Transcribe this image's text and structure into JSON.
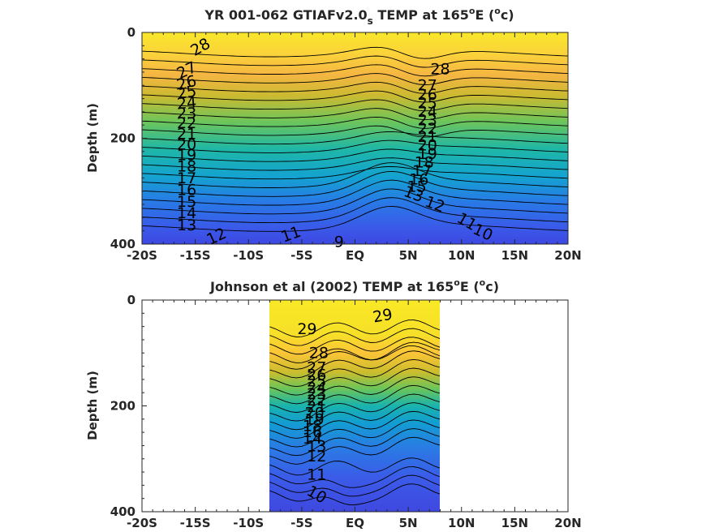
{
  "chart_data": [
    {
      "type": "heatmap",
      "title_main": "YR 001-062 GTIAFv2.0",
      "title_sub": "s",
      "title_rest": " TEMP at 165",
      "title_deg": "o",
      "title_end": "E (",
      "title_unit_sup": "o",
      "title_unit_end": "c)",
      "ylabel": "Depth (m)",
      "xlim": [
        -20,
        20
      ],
      "ylim": [
        400,
        0
      ],
      "x_ticks": [
        -20,
        -15,
        -10,
        -5,
        0,
        5,
        10,
        15,
        20
      ],
      "x_tick_labels": [
        "-20S",
        "-15S",
        "-10S",
        "-5S",
        "EQ",
        "5N",
        "10N",
        "15N",
        "20N"
      ],
      "y_ticks": [
        0,
        200,
        400
      ],
      "y_tick_labels": [
        "0",
        "200",
        "400"
      ],
      "data_extent": [
        -20,
        20
      ],
      "contour_levels": [
        9,
        10,
        11,
        12,
        13,
        14,
        15,
        16,
        17,
        18,
        19,
        20,
        21,
        22,
        23,
        24,
        25,
        26,
        27,
        28,
        29
      ],
      "contour_labels": [
        {
          "text": "28",
          "lat": -14.5,
          "depth": 28,
          "rot": -30
        },
        {
          "text": "27",
          "lat": -15.8,
          "depth": 72,
          "rot": -25
        },
        {
          "text": "26",
          "lat": -15.8,
          "depth": 96,
          "rot": -15
        },
        {
          "text": "25",
          "lat": -15.8,
          "depth": 114,
          "rot": -10
        },
        {
          "text": "24",
          "lat": -15.8,
          "depth": 134,
          "rot": -5
        },
        {
          "text": "23",
          "lat": -15.8,
          "depth": 153,
          "rot": 0
        },
        {
          "text": "22",
          "lat": -15.8,
          "depth": 172,
          "rot": 0
        },
        {
          "text": "21",
          "lat": -15.8,
          "depth": 192,
          "rot": 0
        },
        {
          "text": "20",
          "lat": -15.8,
          "depth": 212,
          "rot": 0
        },
        {
          "text": "19",
          "lat": -15.8,
          "depth": 232,
          "rot": 0
        },
        {
          "text": "18",
          "lat": -15.8,
          "depth": 254,
          "rot": 0
        },
        {
          "text": "17",
          "lat": -15.8,
          "depth": 276,
          "rot": 0
        },
        {
          "text": "16",
          "lat": -15.8,
          "depth": 298,
          "rot": 0
        },
        {
          "text": "15",
          "lat": -15.8,
          "depth": 320,
          "rot": 0
        },
        {
          "text": "14",
          "lat": -15.8,
          "depth": 342,
          "rot": 0
        },
        {
          "text": "13",
          "lat": -15.8,
          "depth": 365,
          "rot": 0
        },
        {
          "text": "12",
          "lat": -13.0,
          "depth": 386,
          "rot": -25
        },
        {
          "text": "11",
          "lat": -6.0,
          "depth": 382,
          "rot": -20
        },
        {
          "text": "9",
          "lat": -1.5,
          "depth": 396,
          "rot": 0
        },
        {
          "text": "28",
          "lat": 8.0,
          "depth": 70,
          "rot": 0
        },
        {
          "text": "27",
          "lat": 6.8,
          "depth": 100,
          "rot": 0
        },
        {
          "text": "26",
          "lat": 6.8,
          "depth": 118,
          "rot": 0
        },
        {
          "text": "25",
          "lat": 6.8,
          "depth": 134,
          "rot": 0
        },
        {
          "text": "24",
          "lat": 6.8,
          "depth": 150,
          "rot": 0
        },
        {
          "text": "23",
          "lat": 6.8,
          "depth": 166,
          "rot": 0
        },
        {
          "text": "22",
          "lat": 6.8,
          "depth": 182,
          "rot": 0
        },
        {
          "text": "21",
          "lat": 6.8,
          "depth": 198,
          "rot": 0
        },
        {
          "text": "20",
          "lat": 6.8,
          "depth": 214,
          "rot": 0
        },
        {
          "text": "19",
          "lat": 6.8,
          "depth": 230,
          "rot": 0
        },
        {
          "text": "18",
          "lat": 6.5,
          "depth": 246,
          "rot": 0
        },
        {
          "text": "17",
          "lat": 6.3,
          "depth": 262,
          "rot": 0
        },
        {
          "text": "16",
          "lat": 6.0,
          "depth": 278,
          "rot": 0
        },
        {
          "text": "15",
          "lat": 5.8,
          "depth": 292,
          "rot": 0
        },
        {
          "text": "13",
          "lat": 5.5,
          "depth": 306,
          "rot": 20
        },
        {
          "text": "12",
          "lat": 7.5,
          "depth": 325,
          "rot": 20
        },
        {
          "text": "11",
          "lat": 10.5,
          "depth": 358,
          "rot": 30
        },
        {
          "text": "10",
          "lat": 12.0,
          "depth": 378,
          "rot": 25
        }
      ]
    },
    {
      "type": "heatmap",
      "title_main": "Johnson et al (2002) TEMP at 165",
      "title_deg": "o",
      "title_end": "E (",
      "title_unit_sup": "o",
      "title_unit_end": "c)",
      "ylabel": "Depth (m)",
      "xlim": [
        -20,
        20
      ],
      "ylim": [
        400,
        0
      ],
      "x_ticks": [
        -20,
        -15,
        -10,
        -5,
        0,
        5,
        10,
        15,
        20
      ],
      "x_tick_labels": [
        "-20S",
        "-15S",
        "-10S",
        "-5S",
        "EQ",
        "5N",
        "10N",
        "15N",
        "20N"
      ],
      "y_ticks": [
        0,
        200,
        400
      ],
      "y_tick_labels": [
        "0",
        "200",
        "400"
      ],
      "data_extent": [
        -8,
        8
      ],
      "contour_levels": [
        10,
        11,
        12,
        13,
        14,
        15,
        16,
        17,
        18,
        19,
        20,
        21,
        22,
        23,
        24,
        25,
        26,
        27,
        28,
        29
      ],
      "contour_labels": [
        {
          "text": "29",
          "lat": -4.5,
          "depth": 55,
          "rot": 0
        },
        {
          "text": "29",
          "lat": 2.6,
          "depth": 30,
          "rot": -10
        },
        {
          "text": "28",
          "lat": -3.4,
          "depth": 100,
          "rot": 0
        },
        {
          "text": "27",
          "lat": -3.6,
          "depth": 128,
          "rot": 0
        },
        {
          "text": "26",
          "lat": -3.6,
          "depth": 142,
          "rot": 0
        },
        {
          "text": "25",
          "lat": -3.6,
          "depth": 154,
          "rot": 0
        },
        {
          "text": "24",
          "lat": -3.6,
          "depth": 166,
          "rot": 0
        },
        {
          "text": "23",
          "lat": -3.6,
          "depth": 178,
          "rot": 0
        },
        {
          "text": "22",
          "lat": -3.6,
          "depth": 190,
          "rot": 0
        },
        {
          "text": "21",
          "lat": -3.6,
          "depth": 202,
          "rot": 0
        },
        {
          "text": "20",
          "lat": -3.8,
          "depth": 214,
          "rot": 0
        },
        {
          "text": "19",
          "lat": -3.8,
          "depth": 226,
          "rot": 0
        },
        {
          "text": "18",
          "lat": -4.0,
          "depth": 238,
          "rot": 0
        },
        {
          "text": "16",
          "lat": -4.0,
          "depth": 250,
          "rot": 0
        },
        {
          "text": "14",
          "lat": -4.0,
          "depth": 262,
          "rot": 0
        },
        {
          "text": "13",
          "lat": -3.6,
          "depth": 277,
          "rot": 0
        },
        {
          "text": "12",
          "lat": -3.6,
          "depth": 296,
          "rot": 0
        },
        {
          "text": "11",
          "lat": -3.6,
          "depth": 330,
          "rot": 0
        },
        {
          "text": "10",
          "lat": -3.6,
          "depth": 368,
          "rot": 30
        }
      ]
    }
  ]
}
